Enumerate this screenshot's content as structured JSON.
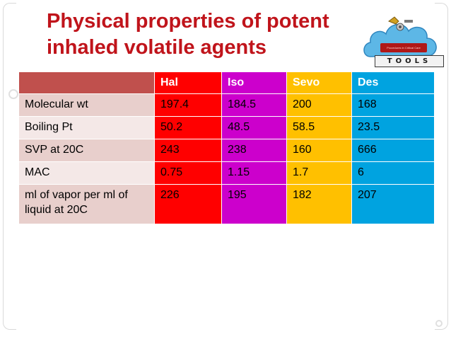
{
  "title": {
    "line1": "Physical properties of potent",
    "line2": "inhaled volatile agents"
  },
  "logo": {
    "word": "TOOLS",
    "tagline": "Procedures in Critical Care"
  },
  "table": {
    "headers": [
      "Hal",
      "Iso",
      "Sevo",
      "Des"
    ],
    "rows": [
      {
        "label": "Molecular wt",
        "values": [
          "197.4",
          "184.5",
          "200",
          "168"
        ]
      },
      {
        "label": "Boiling Pt",
        "values": [
          "50.2",
          "48.5",
          "58.5",
          "23.5"
        ]
      },
      {
        "label": "SVP at 20C",
        "values": [
          "243",
          "238",
          "160",
          "666"
        ]
      },
      {
        "label": "MAC",
        "values": [
          "0.75",
          "1.15",
          "1.7",
          "6"
        ]
      },
      {
        "label": "ml of vapor per ml of liquid at 20C",
        "values": [
          "226",
          "195",
          "182",
          "207"
        ]
      }
    ]
  },
  "colors": {
    "title": "#c0141b",
    "hal": "#ff0000",
    "iso": "#cc00cc",
    "sevo": "#ffc000",
    "des": "#00a3e0",
    "header_corner": "#c0504d"
  }
}
